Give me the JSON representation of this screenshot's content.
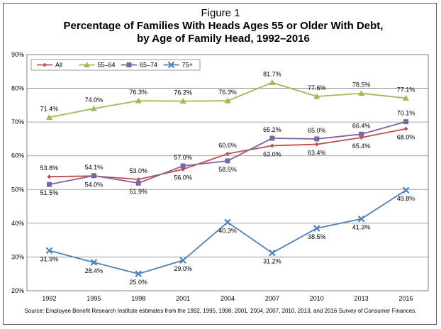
{
  "figure_label": "Figure 1",
  "title_line1": "Percentage of Families With Heads Ages 55 or Older With Debt,",
  "title_line2": "by Age of Family Head, 1992–2016",
  "source": "Source: Employee Benefit Research Institute estimates from the 1992, 1995, 1998, 2001, 2004, 2007, 2010, 2013, and 2016 Survey of Consumer Finances.",
  "chart_data": {
    "type": "line",
    "x": [
      "1992",
      "1995",
      "1998",
      "2001",
      "2004",
      "2007",
      "2010",
      "2013",
      "2016"
    ],
    "y_ticks": [
      "20%",
      "30%",
      "40%",
      "50%",
      "60%",
      "70%",
      "80%",
      "90%"
    ],
    "ylim": [
      20,
      90
    ],
    "grid": true,
    "legend_position": "top-left",
    "series": [
      {
        "name": "All",
        "color": "#c0504d",
        "marker": "diamond",
        "values": [
          53.8,
          54.0,
          53.0,
          56.0,
          60.6,
          63.0,
          63.4,
          65.4,
          68.0
        ],
        "labels": [
          "53.8%",
          "54.0%",
          "53.0%",
          "56.0%",
          "60.6%",
          "63.0%",
          "63.4%",
          "65.4%",
          "68.0%"
        ],
        "label_pos": [
          "above",
          "below",
          "above",
          "below",
          "above",
          "below",
          "below",
          "below",
          "below"
        ]
      },
      {
        "name": "55–64",
        "color": "#9bbb59",
        "marker": "triangle",
        "values": [
          71.4,
          74.0,
          76.3,
          76.2,
          76.3,
          81.7,
          77.6,
          78.5,
          77.1
        ],
        "labels": [
          "71.4%",
          "74.0%",
          "76.3%",
          "76.2%",
          "76.3%",
          "81.7%",
          "77.6%",
          "78.5%",
          "77.1%"
        ],
        "label_pos": [
          "above",
          "above",
          "above",
          "above",
          "above",
          "above",
          "above",
          "above",
          "above"
        ]
      },
      {
        "name": "65–74",
        "color": "#8064a2",
        "marker": "square",
        "values": [
          51.5,
          54.1,
          51.9,
          57.0,
          58.5,
          65.2,
          65.0,
          66.4,
          70.1
        ],
        "labels": [
          "51.5%",
          "54.1%",
          "51.9%",
          "57.0%",
          "58.5%",
          "65.2%",
          "65.0%",
          "66.4%",
          "70.1%"
        ],
        "label_pos": [
          "below",
          "above",
          "below",
          "above",
          "below",
          "above",
          "above",
          "above",
          "above"
        ]
      },
      {
        "name": "75+",
        "color": "#4f81bd",
        "marker": "x",
        "values": [
          31.9,
          28.4,
          25.0,
          29.0,
          40.3,
          31.2,
          38.5,
          41.3,
          49.8
        ],
        "labels": [
          "31.9%",
          "28.4%",
          "25.0%",
          "29.0%",
          "40.3%",
          "31.2%",
          "38.5%",
          "41.3%",
          "49.8%"
        ],
        "label_pos": [
          "below",
          "below",
          "below",
          "below",
          "below",
          "below",
          "below",
          "below",
          "below"
        ]
      }
    ]
  }
}
